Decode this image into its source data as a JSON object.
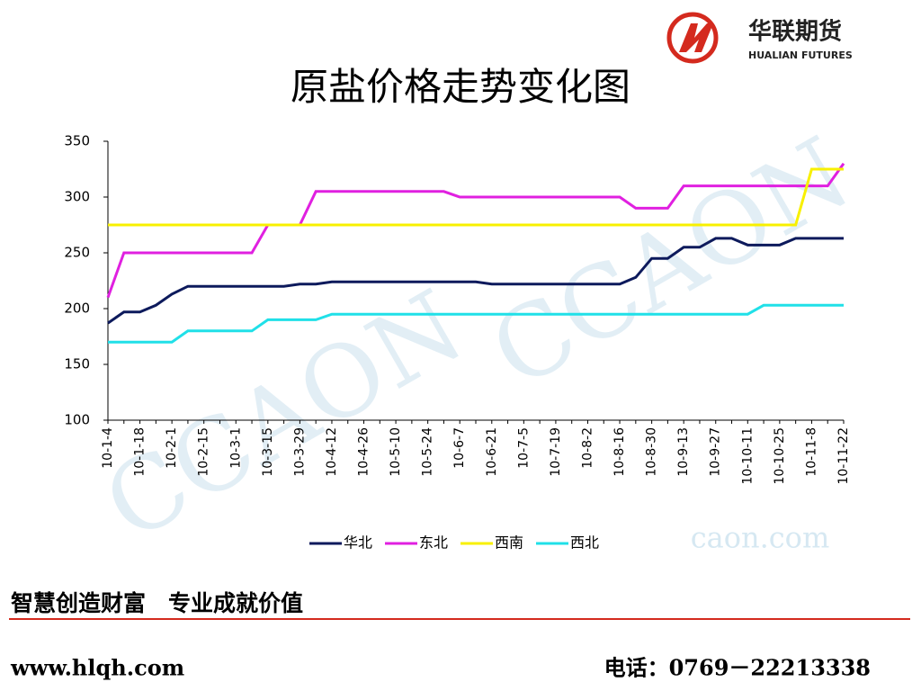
{
  "header": {
    "logo_name": "华联期货",
    "logo_subtitle": "HUALIAN FUTURES"
  },
  "watermark": {
    "brand": "CCAON",
    "site": "caon.com"
  },
  "chart_data": {
    "type": "line",
    "title": "原盐价格走势变化图",
    "categories": [
      "10-1-4",
      null,
      "10-1-18",
      null,
      "10-2-1",
      null,
      "10-2-15",
      null,
      "10-3-1",
      null,
      "10-3-15",
      null,
      "10-3-29",
      null,
      "10-4-12",
      null,
      "10-4-26",
      null,
      "10-5-10",
      null,
      "10-5-24",
      null,
      "10-6-7",
      null,
      "10-6-21",
      null,
      "10-7-5",
      null,
      "10-7-19",
      null,
      "10-8-2",
      null,
      "10-8-16",
      null,
      "10-8-30",
      null,
      "10-9-13",
      null,
      "10-9-27",
      null,
      "10-10-11",
      null,
      "10-10-25",
      null,
      "10-11-8",
      null,
      "10-11-22"
    ],
    "series": [
      {
        "name": "华北",
        "color": "#0d1a5c",
        "values": [
          187,
          197,
          197,
          203,
          213,
          220,
          220,
          220,
          220,
          220,
          220,
          220,
          222,
          222,
          224,
          224,
          224,
          224,
          224,
          224,
          224,
          224,
          224,
          224,
          222,
          222,
          222,
          222,
          222,
          222,
          222,
          222,
          222,
          228,
          245,
          245,
          255,
          255,
          263,
          263,
          257,
          257,
          257,
          263,
          263,
          263,
          263
        ]
      },
      {
        "name": "东北",
        "color": "#e020e0",
        "values": [
          210,
          250,
          250,
          250,
          250,
          250,
          250,
          250,
          250,
          250,
          275,
          275,
          275,
          305,
          305,
          305,
          305,
          305,
          305,
          305,
          305,
          305,
          300,
          300,
          300,
          300,
          300,
          300,
          300,
          300,
          300,
          300,
          300,
          290,
          290,
          290,
          310,
          310,
          310,
          310,
          310,
          310,
          310,
          310,
          310,
          310,
          330
        ]
      },
      {
        "name": "西南",
        "color": "#f8f000",
        "values": [
          275,
          275,
          275,
          275,
          275,
          275,
          275,
          275,
          275,
          275,
          275,
          275,
          275,
          275,
          275,
          275,
          275,
          275,
          275,
          275,
          275,
          275,
          275,
          275,
          275,
          275,
          275,
          275,
          275,
          275,
          275,
          275,
          275,
          275,
          275,
          275,
          275,
          275,
          275,
          275,
          275,
          275,
          275,
          275,
          325,
          325,
          325
        ]
      },
      {
        "name": "西北",
        "color": "#20e0e8",
        "values": [
          170,
          170,
          170,
          170,
          170,
          180,
          180,
          180,
          180,
          180,
          190,
          190,
          190,
          190,
          195,
          195,
          195,
          195,
          195,
          195,
          195,
          195,
          195,
          195,
          195,
          195,
          195,
          195,
          195,
          195,
          195,
          195,
          195,
          195,
          195,
          195,
          195,
          195,
          195,
          195,
          195,
          203,
          203,
          203,
          203,
          203,
          203
        ]
      }
    ],
    "ylim": [
      100,
      350
    ],
    "yticks": [
      100,
      150,
      200,
      250,
      300,
      350
    ],
    "grid": false,
    "legend": "bottom"
  },
  "footer": {
    "slogan": "智慧创造财富　专业成就价值",
    "website": "www.hlqh.com",
    "phone": "电话：0769－22213338"
  }
}
